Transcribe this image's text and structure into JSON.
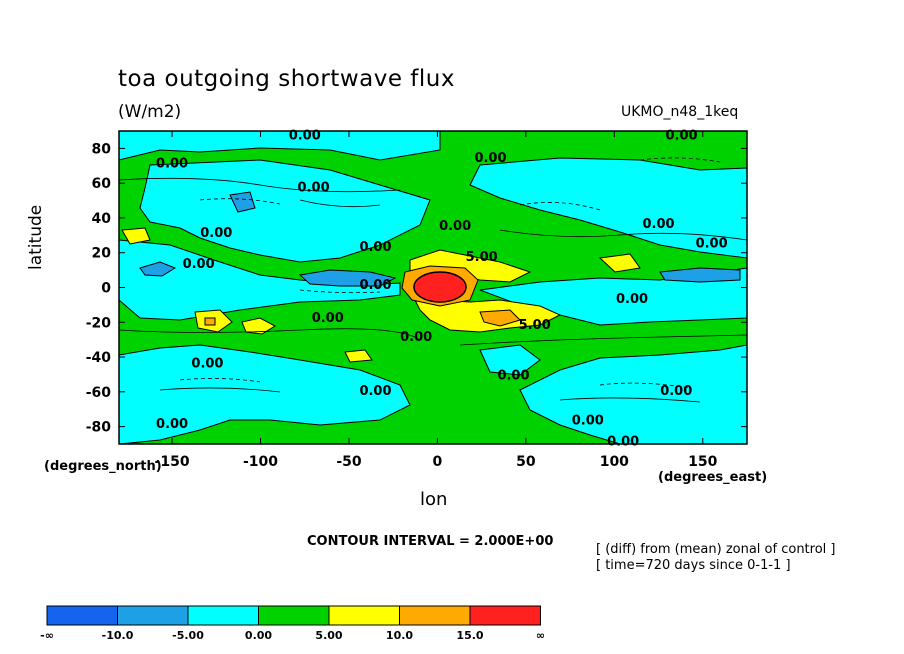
{
  "chart_data": {
    "type": "heatmap",
    "title": "toa outgoing shortwave flux",
    "units": "(W/m2)",
    "model": "UKMO_n48_1keq",
    "xlabel": "lon",
    "ylabel": "latitude",
    "x_unit": "(degrees_east)",
    "y_unit": "(degrees_north)",
    "x_ticks": [
      -150,
      -100,
      -50,
      0,
      50,
      100,
      150
    ],
    "y_ticks": [
      80,
      60,
      40,
      20,
      0,
      -20,
      -40,
      -60,
      -80
    ],
    "xlim": [
      -180,
      175
    ],
    "ylim": [
      -90,
      90
    ],
    "contour_interval": "CONTOUR INTERVAL = 2.000E+00",
    "notes": [
      "[ (diff) from (mean) zonal of control ]",
      "[ time=720 days since 0-1-1 ]"
    ],
    "contour_labels": [
      {
        "text": "0.00",
        "lon": -75,
        "lat": 88
      },
      {
        "text": "0.00",
        "lon": 138,
        "lat": 88
      },
      {
        "text": "0.00",
        "lon": -150,
        "lat": 72
      },
      {
        "text": "0.00",
        "lon": 30,
        "lat": 75
      },
      {
        "text": "0.00",
        "lon": -70,
        "lat": 58
      },
      {
        "text": "0.00",
        "lon": 10,
        "lat": 36
      },
      {
        "text": "0.00",
        "lon": -125,
        "lat": 32
      },
      {
        "text": "0.00",
        "lon": 125,
        "lat": 37
      },
      {
        "text": "0.00",
        "lon": 155,
        "lat": 26
      },
      {
        "text": "0.00",
        "lon": -35,
        "lat": 24
      },
      {
        "text": "5.00",
        "lon": 25,
        "lat": 18
      },
      {
        "text": "0.00",
        "lon": -135,
        "lat": 14
      },
      {
        "text": "0.00",
        "lon": -35,
        "lat": 2
      },
      {
        "text": "0.00",
        "lon": 110,
        "lat": -6
      },
      {
        "text": "0.00",
        "lon": -62,
        "lat": -17
      },
      {
        "text": "5.00",
        "lon": 55,
        "lat": -21
      },
      {
        "text": "0.00",
        "lon": -12,
        "lat": -28
      },
      {
        "text": "0.00",
        "lon": -130,
        "lat": -43
      },
      {
        "text": "0.00",
        "lon": 43,
        "lat": -50
      },
      {
        "text": "0.00",
        "lon": -35,
        "lat": -59
      },
      {
        "text": "0.00",
        "lon": 135,
        "lat": -59
      },
      {
        "text": "0.00",
        "lon": -150,
        "lat": -78
      },
      {
        "text": "0.00",
        "lon": 85,
        "lat": -76
      },
      {
        "text": "0.00",
        "lon": 105,
        "lat": -88
      }
    ],
    "colorbar": {
      "colors": [
        "#1464f0",
        "#1ea0e6",
        "#00ffff",
        "#00d200",
        "#ffff00",
        "#ffaa00",
        "#ff2020"
      ],
      "labels": [
        "-∞",
        "-10.0",
        "-5.00",
        "0.00",
        "5.00",
        "10.0",
        "15.0",
        "∞"
      ]
    }
  }
}
